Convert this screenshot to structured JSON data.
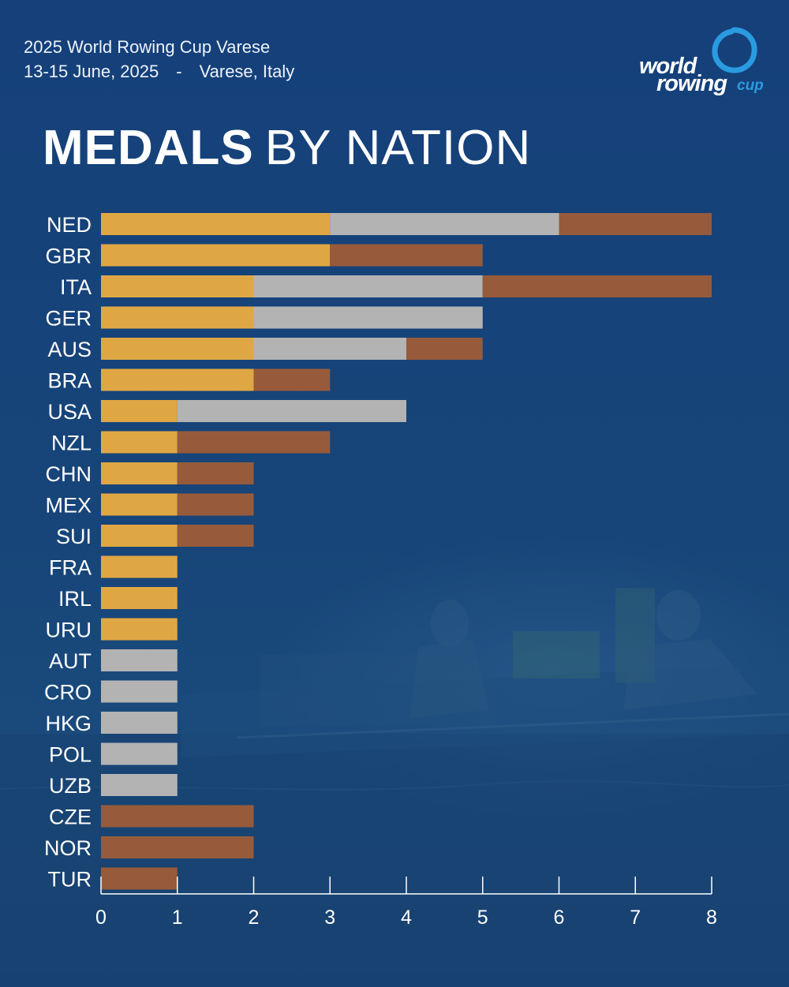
{
  "event": {
    "name": "2025 World Rowing Cup Varese",
    "dates": "13-15 June, 2025",
    "separator": "-",
    "location": "Varese, Italy"
  },
  "title": {
    "bold": "MEDALS",
    "light": "BY NATION"
  },
  "logo": {
    "line1": "world",
    "line2": "rowing",
    "suffix": "cup"
  },
  "colors": {
    "gold": "#dfa744",
    "silver": "#b3b3b3",
    "bronze": "#975b3b",
    "background": "#164179",
    "axis": "#ffffff"
  },
  "chart_data": {
    "type": "bar",
    "orientation": "horizontal",
    "stacked": true,
    "title": "MEDALS BY NATION",
    "xlabel": "",
    "ylabel": "",
    "xlim": [
      0,
      8
    ],
    "xticks": [
      0,
      1,
      2,
      3,
      4,
      5,
      6,
      7,
      8
    ],
    "categories": [
      "NED",
      "GBR",
      "ITA",
      "GER",
      "AUS",
      "BRA",
      "USA",
      "NZL",
      "CHN",
      "MEX",
      "SUI",
      "FRA",
      "IRL",
      "URU",
      "AUT",
      "CRO",
      "HKG",
      "POL",
      "UZB",
      "CZE",
      "NOR",
      "TUR"
    ],
    "series": [
      {
        "name": "Gold",
        "color": "#dfa744",
        "values": [
          3,
          3,
          2,
          2,
          2,
          2,
          1,
          1,
          1,
          1,
          1,
          1,
          1,
          1,
          0,
          0,
          0,
          0,
          0,
          0,
          0,
          0
        ]
      },
      {
        "name": "Silver",
        "color": "#b3b3b3",
        "values": [
          3,
          0,
          3,
          3,
          2,
          0,
          3,
          0,
          0,
          0,
          0,
          0,
          0,
          0,
          1,
          1,
          1,
          1,
          1,
          0,
          0,
          0
        ]
      },
      {
        "name": "Bronze",
        "color": "#975b3b",
        "values": [
          2,
          2,
          3,
          0,
          1,
          1,
          0,
          2,
          1,
          1,
          1,
          0,
          0,
          0,
          0,
          0,
          0,
          0,
          0,
          2,
          2,
          1
        ]
      }
    ],
    "grid": false,
    "legend": "none"
  }
}
